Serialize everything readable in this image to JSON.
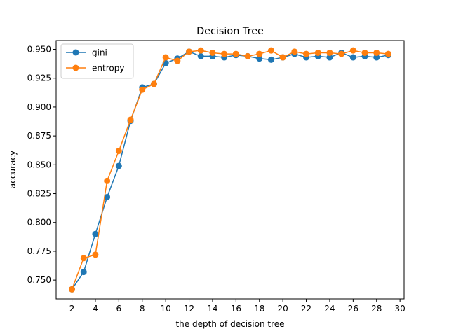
{
  "chart_data": {
    "type": "line",
    "title": "Decision Tree",
    "xlabel": "the depth of decision tree",
    "ylabel": "accuracy",
    "xlim": [
      0.65,
      30.35
    ],
    "ylim": [
      0.7337,
      0.9576
    ],
    "x_ticks": [
      "2",
      "4",
      "6",
      "8",
      "10",
      "12",
      "14",
      "16",
      "18",
      "20",
      "22",
      "24",
      "26",
      "28",
      "30"
    ],
    "y_ticks": [
      "0.750",
      "0.775",
      "0.800",
      "0.825",
      "0.850",
      "0.875",
      "0.900",
      "0.925",
      "0.950"
    ],
    "legend_position": "top-left",
    "grid": false,
    "x": [
      2,
      3,
      4,
      5,
      6,
      7,
      8,
      9,
      10,
      11,
      12,
      13,
      14,
      15,
      16,
      17,
      18,
      19,
      20,
      21,
      22,
      23,
      24,
      25,
      26,
      27,
      28,
      29
    ],
    "series": [
      {
        "name": "gini",
        "color": "#1f77b4",
        "values": [
          0.742,
          0.757,
          0.79,
          0.822,
          0.849,
          0.888,
          0.917,
          0.92,
          0.938,
          0.942,
          0.948,
          0.944,
          0.944,
          0.943,
          0.945,
          0.944,
          0.942,
          0.941,
          0.943,
          0.946,
          0.943,
          0.944,
          0.943,
          0.947,
          0.943,
          0.944,
          0.943,
          0.945
        ]
      },
      {
        "name": "entropy",
        "color": "#ff7f0e",
        "values": [
          0.742,
          0.769,
          0.772,
          0.836,
          0.862,
          0.889,
          0.915,
          0.92,
          0.943,
          0.94,
          0.948,
          0.949,
          0.947,
          0.946,
          0.946,
          0.944,
          0.946,
          0.949,
          0.943,
          0.948,
          0.946,
          0.947,
          0.947,
          0.946,
          0.949,
          0.947,
          0.947,
          0.946
        ]
      }
    ]
  }
}
